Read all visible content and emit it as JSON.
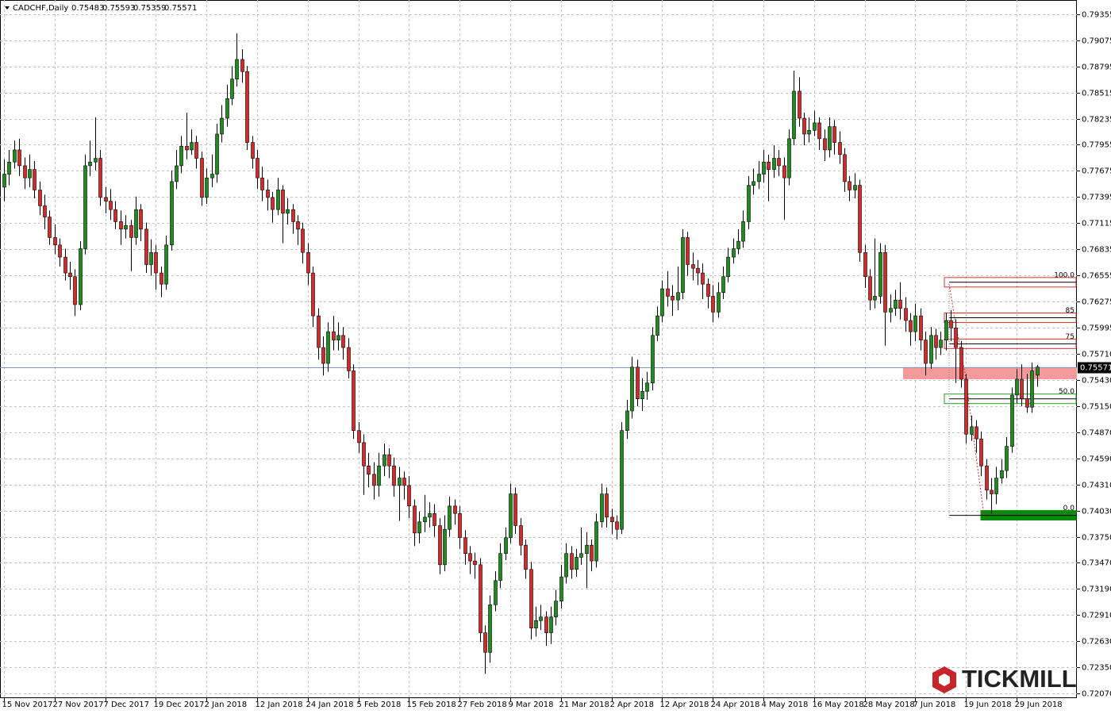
{
  "chart_data": {
    "type": "candlestick",
    "title": "CADCHF,Daily",
    "logo": "TICKMILL",
    "up_color": "#1e8c1e",
    "down_color": "#d42a2a",
    "grid": true,
    "ylim": [
      0.72019,
      0.79508
    ],
    "yticks": [
      0.79355,
      0.79075,
      0.78795,
      0.78515,
      0.78235,
      0.77955,
      0.77675,
      0.77395,
      0.77115,
      0.76835,
      0.76555,
      0.76275,
      0.75995,
      {
        "value": 0.7571,
        "label": "0.75710"
      },
      {
        "value": 0.7543,
        "label": "0.75430"
      },
      {
        "value": 0.7515,
        "label": "0.75150"
      },
      {
        "value": 0.7487,
        "label": "0.74870"
      },
      {
        "value": 0.7459,
        "label": "0.74590"
      },
      {
        "value": 0.7431,
        "label": "0.74310"
      },
      {
        "value": 0.7403,
        "label": "0.74030"
      },
      {
        "value": 0.7375,
        "label": "0.73750"
      },
      {
        "value": 0.7347,
        "label": "0.73470"
      },
      {
        "value": 0.7319,
        "label": "0.73190"
      },
      {
        "value": 0.7291,
        "label": "0.72910"
      },
      {
        "value": 0.7263,
        "label": "0.72630"
      },
      {
        "value": 0.7235,
        "label": "0.72350"
      },
      {
        "value": 0.7207,
        "label": "0.72070"
      }
    ],
    "categories": [
      "15 Nov 2017",
      null,
      null,
      null,
      null,
      null,
      null,
      null,
      null,
      null,
      "27 Nov 2017",
      null,
      null,
      null,
      null,
      null,
      null,
      null,
      null,
      null,
      "7 Dec 2017",
      null,
      null,
      null,
      null,
      null,
      null,
      null,
      null,
      null,
      "19 Dec 2017",
      null,
      null,
      null,
      null,
      null,
      null,
      null,
      null,
      null,
      "2 Jan 2018",
      null,
      null,
      null,
      null,
      null,
      null,
      null,
      null,
      null,
      "12 Jan 2018",
      null,
      null,
      null,
      null,
      null,
      null,
      null,
      null,
      null,
      "24 Jan 2018",
      null,
      null,
      null,
      null,
      null,
      null,
      null,
      null,
      null,
      "5 Feb 2018",
      null,
      null,
      null,
      null,
      null,
      null,
      null,
      null,
      null,
      "15 Feb 2018",
      null,
      null,
      null,
      null,
      null,
      null,
      null,
      null,
      null,
      "27 Feb 2018",
      null,
      null,
      null,
      null,
      null,
      null,
      null,
      null,
      null,
      "9 Mar 2018",
      null,
      null,
      null,
      null,
      null,
      null,
      null,
      null,
      null,
      "21 Mar 2018",
      null,
      null,
      null,
      null,
      null,
      null,
      null,
      null,
      null,
      "2 Apr 2018",
      null,
      null,
      null,
      null,
      null,
      null,
      null,
      null,
      null,
      "12 Apr 2018",
      null,
      null,
      null,
      null,
      null,
      null,
      null,
      null,
      null,
      "24 Apr 2018",
      null,
      null,
      null,
      null,
      null,
      null,
      null,
      null,
      null,
      "4 May 2018",
      null,
      null,
      null,
      null,
      null,
      null,
      null,
      null,
      null,
      "16 May 2018",
      null,
      null,
      null,
      null,
      null,
      null,
      null,
      null,
      null,
      "28 May 2018",
      null,
      null,
      null,
      null,
      null,
      null,
      null,
      null,
      null,
      "7 Jun 2018",
      null,
      null,
      null,
      null,
      null,
      null,
      null,
      null,
      null,
      "19 Jun 2018",
      null,
      null,
      null,
      null,
      null,
      null,
      null,
      null,
      null,
      "29 Jun 2018",
      null,
      null,
      null,
      null
    ],
    "open": [
      0.775,
      0.7764,
      0.7777,
      0.779,
      0.7773,
      0.776,
      0.7769,
      0.7747,
      0.773,
      0.7718,
      0.7696,
      0.7688,
      0.7675,
      0.7658,
      0.7654,
      0.7624,
      0.7684,
      0.7773,
      0.7777,
      0.7781,
      0.7739,
      0.7735,
      0.7726,
      0.7713,
      0.7705,
      0.7709,
      0.7696,
      0.7726,
      0.7705,
      0.7667,
      0.768,
      0.7658,
      0.7646,
      0.7688,
      0.7756,
      0.7773,
      0.7794,
      0.779,
      0.7798,
      0.7781,
      0.7739,
      0.776,
      0.7764,
      0.7807,
      0.7824,
      0.7845,
      0.7866,
      0.7887,
      0.7874,
      0.7798,
      0.7781,
      0.776,
      0.7747,
      0.7739,
      0.7726,
      0.7747,
      0.7722,
      0.7726,
      0.7713,
      0.7705,
      0.768,
      0.7658,
      0.7612,
      0.7578,
      0.7561,
      0.7595,
      0.7586,
      0.7591,
      0.7578,
      0.7553,
      0.7489,
      0.7476,
      0.7451,
      0.7442,
      0.743,
      0.7451,
      0.7463,
      0.7451,
      0.743,
      0.7438,
      0.743,
      0.7408,
      0.7379,
      0.7391,
      0.7396,
      0.74,
      0.7387,
      0.7345,
      0.7383,
      0.7408,
      0.74,
      0.7374,
      0.7357,
      0.7349,
      0.7345,
      0.7272,
      0.7251,
      0.7302,
      0.7328,
      0.7357,
      0.7374,
      0.7421,
      0.7387,
      0.7366,
      0.734,
      0.7277,
      0.7285,
      0.7289,
      0.7272,
      0.7289,
      0.7306,
      0.7332,
      0.7357,
      0.734,
      0.7353,
      0.7357,
      0.7366,
      0.7349,
      0.7391,
      0.7421,
      0.7396,
      0.7391,
      0.7383,
      0.7489,
      0.751,
      0.7557,
      0.7523,
      0.7531,
      0.754,
      0.7591,
      0.7612,
      0.7641,
      0.7633,
      0.7629,
      0.7637,
      0.7696,
      0.7667,
      0.7663,
      0.7658,
      0.7646,
      0.7633,
      0.7616,
      0.7637,
      0.7654,
      0.7675,
      0.7684,
      0.7692,
      0.7713,
      0.7752,
      0.7756,
      0.7764,
      0.7777,
      0.7769,
      0.7781,
      0.7773,
      0.776,
      0.7802,
      0.7853,
      0.7824,
      0.7807,
      0.7811,
      0.7819,
      0.7802,
      0.779,
      0.7815,
      0.7798,
      0.7785,
      0.7756,
      0.7747,
      0.7752,
      0.768,
      0.7654,
      0.7629,
      0.7633,
      0.768,
      0.7616,
      0.762,
      0.7629,
      0.762,
      0.7607,
      0.7595,
      0.7612,
      0.7586,
      0.7561,
      0.7591,
      0.7578,
      0.7586,
      0.7607,
      0.7599,
      0.7578,
      0.7544,
      0.7485,
      0.7493,
      0.748,
      0.7451,
      0.7425,
      0.7421,
      0.7438,
      0.7446,
      0.7472,
      0.7527,
      0.7544,
      0.7523,
      0.7514,
      0.75483
    ],
    "high": [
      0.778,
      0.779,
      0.78,
      0.7802,
      0.7782,
      0.7785,
      0.7778,
      0.7756,
      0.7742,
      0.7725,
      0.771,
      0.7695,
      0.7684,
      0.767,
      0.7662,
      0.7692,
      0.7785,
      0.78,
      0.7825,
      0.779,
      0.775,
      0.7748,
      0.7735,
      0.7725,
      0.772,
      0.7715,
      0.774,
      0.7732,
      0.7712,
      0.7694,
      0.7688,
      0.7665,
      0.7698,
      0.7768,
      0.779,
      0.7805,
      0.783,
      0.7812,
      0.7805,
      0.7788,
      0.777,
      0.7785,
      0.7818,
      0.7838,
      0.786,
      0.788,
      0.7915,
      0.7898,
      0.788,
      0.7805,
      0.779,
      0.7772,
      0.7758,
      0.7745,
      0.776,
      0.7752,
      0.7738,
      0.7732,
      0.772,
      0.7712,
      0.769,
      0.7665,
      0.762,
      0.759,
      0.7605,
      0.7612,
      0.7605,
      0.76,
      0.7588,
      0.756,
      0.7498,
      0.7485,
      0.7465,
      0.7455,
      0.7465,
      0.7475,
      0.747,
      0.746,
      0.745,
      0.7445,
      0.744,
      0.7415,
      0.7402,
      0.742,
      0.7412,
      0.741,
      0.7395,
      0.7398,
      0.7418,
      0.7415,
      0.7408,
      0.7382,
      0.7365,
      0.7358,
      0.7352,
      0.728,
      0.7312,
      0.7338,
      0.7368,
      0.7385,
      0.7432,
      0.7428,
      0.7395,
      0.7372,
      0.7348,
      0.73,
      0.7302,
      0.7295,
      0.73,
      0.7318,
      0.7345,
      0.7368,
      0.7365,
      0.7362,
      0.7385,
      0.738,
      0.7372,
      0.74,
      0.7432,
      0.7428,
      0.7405,
      0.7398,
      0.7498,
      0.7522,
      0.7568,
      0.7565,
      0.7545,
      0.7552,
      0.76,
      0.7622,
      0.765,
      0.766,
      0.7645,
      0.7665,
      0.7705,
      0.7702,
      0.768,
      0.7672,
      0.7668,
      0.7652,
      0.7645,
      0.7648,
      0.7665,
      0.7685,
      0.7695,
      0.7705,
      0.7725,
      0.7762,
      0.777,
      0.7778,
      0.779,
      0.7785,
      0.7795,
      0.779,
      0.7782,
      0.7812,
      0.7875,
      0.7868,
      0.783,
      0.7825,
      0.7832,
      0.7825,
      0.7812,
      0.7825,
      0.7822,
      0.781,
      0.7792,
      0.7762,
      0.7765,
      0.7758,
      0.7688,
      0.7662,
      0.7695,
      0.769,
      0.7688,
      0.7635,
      0.764,
      0.7648,
      0.7632,
      0.7615,
      0.7625,
      0.762,
      0.7595,
      0.76,
      0.7598,
      0.7595,
      0.7615,
      0.7618,
      0.7608,
      0.7585,
      0.755,
      0.7505,
      0.75,
      0.7488,
      0.7458,
      0.7438,
      0.745,
      0.7458,
      0.7482,
      0.7535,
      0.7555,
      0.756,
      0.755,
      0.7562,
      0.75593
    ],
    "low": [
      0.7735,
      0.7752,
      0.777,
      0.7762,
      0.7748,
      0.775,
      0.7738,
      0.772,
      0.7705,
      0.7688,
      0.7678,
      0.7665,
      0.765,
      0.764,
      0.7612,
      0.7618,
      0.7678,
      0.7762,
      0.7768,
      0.773,
      0.7722,
      0.7715,
      0.7705,
      0.7688,
      0.7695,
      0.766,
      0.7688,
      0.7692,
      0.7658,
      0.7655,
      0.764,
      0.7632,
      0.764,
      0.7682,
      0.7748,
      0.7765,
      0.778,
      0.7785,
      0.777,
      0.773,
      0.7732,
      0.775,
      0.7755,
      0.7798,
      0.7815,
      0.7838,
      0.7858,
      0.7862,
      0.779,
      0.777,
      0.7748,
      0.7735,
      0.7725,
      0.7712,
      0.772,
      0.769,
      0.771,
      0.77,
      0.7688,
      0.7668,
      0.7645,
      0.76,
      0.7565,
      0.7548,
      0.7552,
      0.7575,
      0.7575,
      0.7565,
      0.7545,
      0.748,
      0.7465,
      0.742,
      0.7428,
      0.7415,
      0.7418,
      0.744,
      0.7438,
      0.7418,
      0.7392,
      0.7415,
      0.7395,
      0.7365,
      0.7368,
      0.738,
      0.7385,
      0.7375,
      0.7335,
      0.7338,
      0.7375,
      0.7388,
      0.7362,
      0.7345,
      0.7335,
      0.733,
      0.7262,
      0.7228,
      0.724,
      0.7295,
      0.732,
      0.735,
      0.7368,
      0.7378,
      0.7355,
      0.733,
      0.7265,
      0.7268,
      0.7275,
      0.7258,
      0.726,
      0.728,
      0.7298,
      0.7325,
      0.733,
      0.7332,
      0.7345,
      0.732,
      0.7338,
      0.7342,
      0.7385,
      0.7385,
      0.7378,
      0.7372,
      0.7378,
      0.748,
      0.7502,
      0.7515,
      0.751,
      0.7522,
      0.7532,
      0.7585,
      0.7605,
      0.7622,
      0.7612,
      0.7618,
      0.763,
      0.7655,
      0.765,
      0.7645,
      0.763,
      0.762,
      0.7605,
      0.761,
      0.763,
      0.7648,
      0.7668,
      0.7678,
      0.7685,
      0.7705,
      0.7742,
      0.7748,
      0.7755,
      0.7735,
      0.776,
      0.7762,
      0.7715,
      0.7752,
      0.7795,
      0.7815,
      0.7795,
      0.7798,
      0.7805,
      0.779,
      0.7778,
      0.7782,
      0.7785,
      0.7775,
      0.7745,
      0.7735,
      0.7738,
      0.767,
      0.7642,
      0.7618,
      0.762,
      0.7625,
      0.758,
      0.7605,
      0.7612,
      0.7608,
      0.7595,
      0.758,
      0.7585,
      0.7575,
      0.7548,
      0.7555,
      0.7565,
      0.757,
      0.7575,
      0.7585,
      0.754,
      0.7535,
      0.7475,
      0.7478,
      0.7465,
      0.744,
      0.7415,
      0.74,
      0.741,
      0.7432,
      0.7438,
      0.7465,
      0.7518,
      0.7515,
      0.7508,
      0.7508,
      0.75359
    ],
    "close": [
      0.7764,
      0.7777,
      0.779,
      0.7773,
      0.776,
      0.7769,
      0.7747,
      0.773,
      0.7718,
      0.7696,
      0.7688,
      0.7675,
      0.7658,
      0.7654,
      0.7624,
      0.7684,
      0.7773,
      0.7777,
      0.7781,
      0.7739,
      0.7735,
      0.7726,
      0.7713,
      0.7705,
      0.7709,
      0.7696,
      0.7726,
      0.7705,
      0.7667,
      0.768,
      0.7658,
      0.7646,
      0.7688,
      0.7756,
      0.7773,
      0.7794,
      0.779,
      0.7798,
      0.7781,
      0.7739,
      0.776,
      0.7764,
      0.7807,
      0.7824,
      0.7845,
      0.7866,
      0.7887,
      0.7874,
      0.7798,
      0.7781,
      0.776,
      0.7747,
      0.7739,
      0.7726,
      0.7747,
      0.7722,
      0.7726,
      0.7713,
      0.7705,
      0.768,
      0.7658,
      0.7612,
      0.7578,
      0.7561,
      0.7595,
      0.7586,
      0.7591,
      0.7578,
      0.7553,
      0.7489,
      0.7476,
      0.7451,
      0.7442,
      0.743,
      0.7451,
      0.7463,
      0.7451,
      0.743,
      0.7438,
      0.743,
      0.7408,
      0.7379,
      0.7391,
      0.7396,
      0.74,
      0.7387,
      0.7345,
      0.7383,
      0.7408,
      0.74,
      0.7374,
      0.7357,
      0.7349,
      0.7345,
      0.7272,
      0.7251,
      0.7302,
      0.7328,
      0.7357,
      0.7374,
      0.7421,
      0.7387,
      0.7366,
      0.734,
      0.7277,
      0.7285,
      0.7289,
      0.7272,
      0.7289,
      0.7306,
      0.7332,
      0.7357,
      0.734,
      0.7353,
      0.7357,
      0.7366,
      0.7349,
      0.7391,
      0.7421,
      0.7396,
      0.7391,
      0.7383,
      0.7489,
      0.751,
      0.7557,
      0.7523,
      0.7531,
      0.754,
      0.7591,
      0.7612,
      0.7641,
      0.7633,
      0.7629,
      0.7637,
      0.7696,
      0.7667,
      0.7663,
      0.7658,
      0.7646,
      0.7633,
      0.7616,
      0.7637,
      0.7654,
      0.7675,
      0.7684,
      0.7692,
      0.7713,
      0.7752,
      0.7756,
      0.7764,
      0.7777,
      0.7769,
      0.7781,
      0.7773,
      0.776,
      0.7802,
      0.7853,
      0.7824,
      0.7807,
      0.7811,
      0.7819,
      0.7802,
      0.779,
      0.7815,
      0.7798,
      0.7785,
      0.7756,
      0.7747,
      0.7752,
      0.768,
      0.7654,
      0.7629,
      0.7633,
      0.768,
      0.7616,
      0.762,
      0.7629,
      0.762,
      0.7607,
      0.7595,
      0.7612,
      0.7586,
      0.7561,
      0.7591,
      0.7578,
      0.7586,
      0.7607,
      0.7599,
      0.7578,
      0.7544,
      0.7485,
      0.7493,
      0.748,
      0.7451,
      0.7425,
      0.7421,
      0.7438,
      0.7446,
      0.7472,
      0.7527,
      0.7544,
      0.7523,
      0.7514,
      0.7553,
      0.75571
    ],
    "zone": {
      "from": 0.7544,
      "to": 0.7557,
      "color": "#f49a9a"
    },
    "fib_levels": [
      {
        "label": "100.0",
        "value": 0.7648,
        "color": "#e03030"
      },
      {
        "label": "85",
        "value": 0.761,
        "color": "#e03030"
      },
      {
        "label": "75",
        "value": 0.7582,
        "color": "#e03030"
      },
      {
        "label": "50.0",
        "value": 0.7523,
        "color": "#2a9a2a"
      },
      {
        "label": "0.0",
        "value": 0.7398,
        "color": "#0a8a0a",
        "fill": true
      }
    ]
  }
}
